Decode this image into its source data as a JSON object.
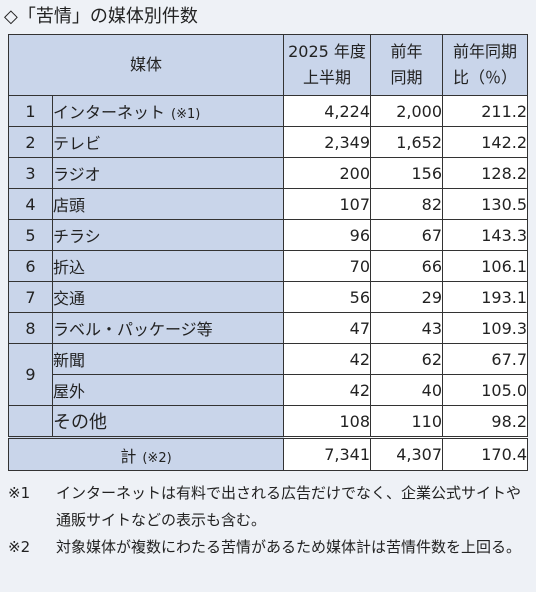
{
  "title": "◇「苦情」の媒体別件数",
  "header": {
    "media": "媒体",
    "col1_line1": "2025 年度",
    "col1_line2": "上半期",
    "col2_line1": "前年",
    "col2_line2": "同期",
    "col3_line1": "前年同期",
    "col3_line2": "比（％）"
  },
  "rows": [
    {
      "num": "1",
      "name": "インターネット",
      "mark": "(※1)",
      "v1": "4,224",
      "v2": "2,000",
      "v3": "211.2"
    },
    {
      "num": "2",
      "name": "テレビ",
      "mark": "",
      "v1": "2,349",
      "v2": "1,652",
      "v3": "142.2"
    },
    {
      "num": "3",
      "name": "ラジオ",
      "mark": "",
      "v1": "200",
      "v2": "156",
      "v3": "128.2"
    },
    {
      "num": "4",
      "name": "店頭",
      "mark": "",
      "v1": "107",
      "v2": "82",
      "v3": "130.5"
    },
    {
      "num": "5",
      "name": "チラシ",
      "mark": "",
      "v1": "96",
      "v2": "67",
      "v3": "143.3"
    },
    {
      "num": "6",
      "name": "折込",
      "mark": "",
      "v1": "70",
      "v2": "66",
      "v3": "106.1"
    },
    {
      "num": "7",
      "name": "交通",
      "mark": "",
      "v1": "56",
      "v2": "29",
      "v3": "193.1"
    },
    {
      "num": "8",
      "name": "ラベル・パッケージ等",
      "mark": "",
      "v1": "47",
      "v2": "43",
      "v3": "109.3"
    },
    {
      "num": "9",
      "name": "新聞",
      "mark": "",
      "v1": "42",
      "v2": "62",
      "v3": "67.7"
    },
    {
      "num": "",
      "name": "屋外",
      "mark": "",
      "v1": "42",
      "v2": "40",
      "v3": "105.0"
    },
    {
      "num": "",
      "name": "その他",
      "mark": "",
      "v1": "108",
      "v2": "110",
      "v3": "98.2"
    }
  ],
  "total": {
    "label": "計",
    "mark": "(※2)",
    "v1": "7,341",
    "v2": "4,307",
    "v3": "170.4"
  },
  "notes": [
    {
      "mark": "※1",
      "text": "インターネットは有料で出される広告だけでなく、企業公式サイトや通販サイトなどの表示も含む。"
    },
    {
      "mark": "※2",
      "text": "対象媒体が複数にわたる苦情があるため媒体計は苦情件数を上回る。"
    }
  ]
}
